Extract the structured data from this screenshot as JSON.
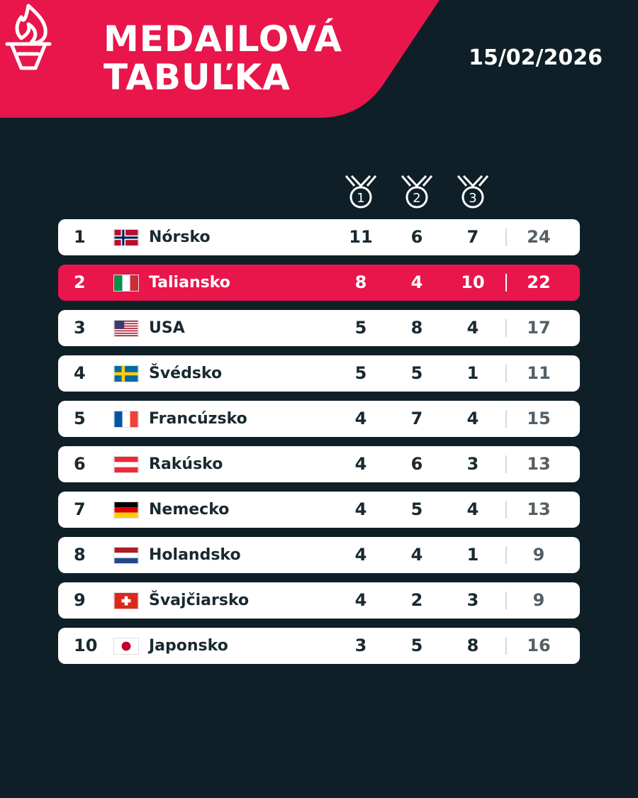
{
  "header": {
    "title_line1": "MEDAILOVÁ",
    "title_line2": "TABUĽKA",
    "date": "15/02/2026",
    "torch_icon": "torch-icon"
  },
  "medal_headers": [
    {
      "icon": "medal-icon",
      "number": "1"
    },
    {
      "icon": "medal-icon",
      "number": "2"
    },
    {
      "icon": "medal-icon",
      "number": "3"
    }
  ],
  "colors": {
    "background": "#0f1f28",
    "accent": "#e8164a",
    "row": "#ffffff"
  },
  "rows": [
    {
      "rank": "1",
      "country": "Nórsko",
      "flag": "norway-flag-icon",
      "gold": "11",
      "silver": "6",
      "bronze": "7",
      "total": "24"
    },
    {
      "rank": "2",
      "country": "Taliansko",
      "flag": "italy-flag-icon",
      "gold": "8",
      "silver": "4",
      "bronze": "10",
      "total": "22"
    },
    {
      "rank": "3",
      "country": "USA",
      "flag": "usa-flag-icon",
      "gold": "5",
      "silver": "8",
      "bronze": "4",
      "total": "17"
    },
    {
      "rank": "4",
      "country": "Švédsko",
      "flag": "sweden-flag-icon",
      "gold": "5",
      "silver": "5",
      "bronze": "1",
      "total": "11"
    },
    {
      "rank": "5",
      "country": "Francúzsko",
      "flag": "france-flag-icon",
      "gold": "4",
      "silver": "7",
      "bronze": "4",
      "total": "15"
    },
    {
      "rank": "6",
      "country": "Rakúsko",
      "flag": "austria-flag-icon",
      "gold": "4",
      "silver": "6",
      "bronze": "3",
      "total": "13"
    },
    {
      "rank": "7",
      "country": "Nemecko",
      "flag": "germany-flag-icon",
      "gold": "4",
      "silver": "5",
      "bronze": "4",
      "total": "13"
    },
    {
      "rank": "8",
      "country": "Holandsko",
      "flag": "netherlands-flag-icon",
      "gold": "4",
      "silver": "4",
      "bronze": "1",
      "total": "9"
    },
    {
      "rank": "9",
      "country": "Švajčiarsko",
      "flag": "switzerland-flag-icon",
      "gold": "4",
      "silver": "2",
      "bronze": "3",
      "total": "9"
    },
    {
      "rank": "10",
      "country": "Japonsko",
      "flag": "japan-flag-icon",
      "gold": "3",
      "silver": "5",
      "bronze": "8",
      "total": "16"
    }
  ]
}
